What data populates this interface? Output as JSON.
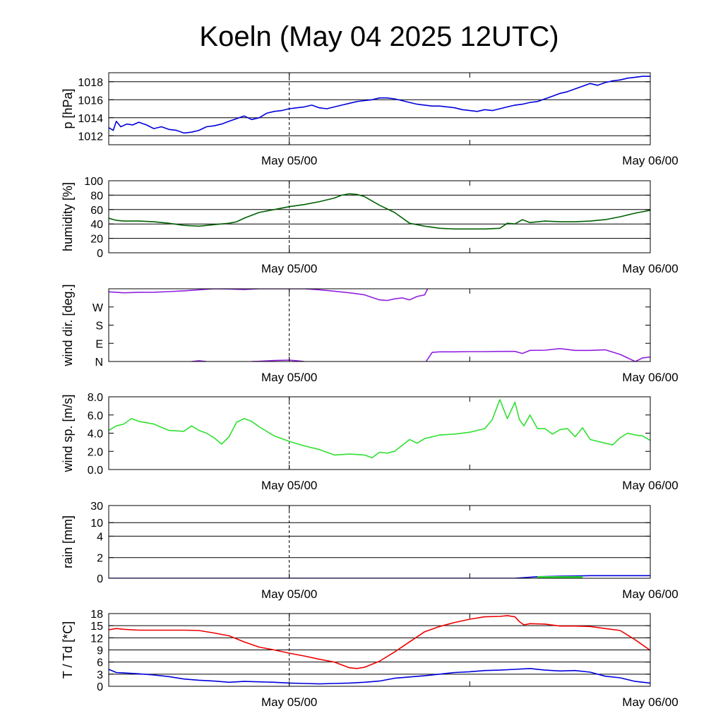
{
  "title": "Koeln (May 04 2025 12UTC)",
  "x_tick_labels": [
    "May 05/00",
    "May 06/00"
  ],
  "chart_data": [
    {
      "id": "pressure",
      "type": "line",
      "ylabel": "p [hPa]",
      "ylim": [
        1011,
        1019
      ],
      "yticks": [
        1012,
        1014,
        1016,
        1018
      ],
      "ytick_labels": [
        "1012",
        "1014",
        "1016",
        "1018"
      ],
      "grid_y": [
        1012,
        1014,
        1016,
        1018
      ],
      "xlim": [
        0,
        36
      ],
      "x_tick_positions": [
        12,
        24,
        36
      ],
      "series": [
        {
          "color": "#0000dd",
          "x": [
            0,
            0.3,
            0.5,
            0.8,
            1.2,
            1.6,
            2,
            2.5,
            3,
            3.5,
            4,
            4.5,
            5,
            5.5,
            6,
            6.5,
            7,
            7.5,
            8,
            8.5,
            9,
            9.5,
            10,
            10.5,
            11,
            11.5,
            12,
            12.5,
            13,
            13.5,
            14,
            14.5,
            15,
            15.5,
            16,
            16.5,
            17,
            17.5,
            18,
            18.5,
            19,
            19.5,
            20,
            20.5,
            21,
            21.5,
            22,
            22.5,
            23,
            23.5,
            24,
            24.5,
            25,
            25.5,
            26,
            26.5,
            27,
            27.5,
            28,
            28.5,
            29,
            29.5,
            30,
            30.5,
            31,
            31.5,
            32,
            32.5,
            33,
            33.5,
            34,
            34.5,
            35,
            35.5,
            36
          ],
          "y": [
            1012.9,
            1012.6,
            1013.6,
            1013.0,
            1013.3,
            1013.2,
            1013.5,
            1013.2,
            1012.8,
            1013.0,
            1012.7,
            1012.6,
            1012.3,
            1012.4,
            1012.6,
            1013.0,
            1013.1,
            1013.3,
            1013.6,
            1013.9,
            1014.2,
            1013.8,
            1014.0,
            1014.5,
            1014.7,
            1014.8,
            1015.0,
            1015.1,
            1015.2,
            1015.4,
            1015.1,
            1015.0,
            1015.2,
            1015.4,
            1015.6,
            1015.8,
            1015.9,
            1016.0,
            1016.2,
            1016.2,
            1016.1,
            1015.9,
            1015.7,
            1015.5,
            1015.4,
            1015.3,
            1015.3,
            1015.2,
            1015.1,
            1014.9,
            1014.8,
            1014.7,
            1014.9,
            1014.8,
            1015.0,
            1015.2,
            1015.4,
            1015.5,
            1015.7,
            1015.8,
            1016.1,
            1016.4,
            1016.7,
            1016.9,
            1017.2,
            1017.5,
            1017.8,
            1017.6,
            1017.9,
            1018.1,
            1018.2,
            1018.4,
            1018.5,
            1018.6,
            1018.6
          ]
        }
      ]
    },
    {
      "id": "humidity",
      "type": "line",
      "ylabel": "humidity [%]",
      "ylim": [
        0,
        100
      ],
      "yticks": [
        0,
        20,
        40,
        60,
        80,
        100
      ],
      "ytick_labels": [
        "0",
        "20",
        "40",
        "60",
        "80",
        "100"
      ],
      "grid_y": [
        20,
        40,
        60,
        80
      ],
      "xlim": [
        0,
        36
      ],
      "x_tick_positions": [
        12,
        24,
        36
      ],
      "series": [
        {
          "color": "#006000",
          "x": [
            0,
            0.5,
            1,
            2,
            3,
            4,
            5,
            6,
            7,
            7.5,
            8,
            8.5,
            9,
            10,
            11,
            12,
            13,
            14,
            15,
            15.5,
            16,
            16.5,
            17,
            17.5,
            18,
            19,
            20,
            21,
            22,
            23,
            24,
            25,
            26,
            26.5,
            27,
            27.5,
            28,
            29,
            30,
            31,
            32,
            33,
            34,
            35,
            36
          ],
          "y": [
            48,
            45,
            44,
            44,
            43,
            41,
            38,
            37,
            39,
            40,
            41,
            43,
            48,
            56,
            60,
            64,
            67,
            71,
            76,
            80,
            82,
            81,
            78,
            72,
            66,
            56,
            41,
            37,
            34,
            33,
            33,
            33,
            34,
            41,
            40,
            46,
            42,
            44,
            43,
            43,
            44,
            46,
            50,
            55,
            59
          ]
        }
      ]
    },
    {
      "id": "wind_direction",
      "type": "line",
      "ylabel": "wind dir. [deg.]",
      "ylim": [
        0,
        360
      ],
      "yticks": [
        0,
        90,
        180,
        270
      ],
      "ytick_labels": [
        "N",
        "E",
        "S",
        "W"
      ],
      "grid_y": [],
      "xlim": [
        0,
        36
      ],
      "x_tick_positions": [
        12,
        24,
        36
      ],
      "series": [
        {
          "color": "#9020e0",
          "segments": [
            {
              "x": [
                0,
                1,
                2,
                3,
                4,
                5,
                6,
                7,
                8,
                9,
                10,
                11,
                12,
                13,
                14,
                15,
                16,
                17,
                18,
                18.5,
                19,
                19.5,
                20,
                20.5,
                21,
                21.2
              ],
              "y": [
                345,
                340,
                342,
                343,
                346,
                350,
                355,
                360,
                359,
                356,
                360,
                360,
                360,
                360,
                355,
                348,
                340,
                330,
                305,
                302,
                310,
                315,
                305,
                322,
                330,
                360
              ]
            },
            {
              "x": [
                5.5,
                6,
                6.5
              ],
              "y": [
                0,
                4,
                0
              ]
            },
            {
              "x": [
                9.5,
                10,
                11,
                12,
                12.5,
                13
              ],
              "y": [
                0,
                1,
                5,
                7,
                4,
                0
              ]
            },
            {
              "x": [
                21.1,
                21.5,
                22,
                23,
                24,
                25,
                26,
                27,
                27.5,
                28,
                29,
                30,
                31,
                32,
                33,
                34,
                35,
                35.5,
                36
              ],
              "y": [
                0,
                45,
                48,
                48,
                49,
                49,
                50,
                50,
                40,
                55,
                56,
                64,
                55,
                55,
                58,
                35,
                0,
                18,
                22
              ]
            }
          ]
        }
      ]
    },
    {
      "id": "wind_speed",
      "type": "line",
      "ylabel": "wind sp. [m/s]",
      "ylim": [
        0,
        8
      ],
      "yticks": [
        0,
        2,
        4,
        6,
        8
      ],
      "ytick_labels": [
        "0.0",
        "2.0",
        "4.0",
        "6.0",
        "8.0"
      ],
      "grid_y": [],
      "xlim": [
        0,
        36
      ],
      "x_tick_positions": [
        12,
        24,
        36
      ],
      "series": [
        {
          "color": "#30e030",
          "x": [
            0,
            0.5,
            1,
            1.5,
            2,
            3,
            4,
            5,
            5.5,
            6,
            6.5,
            7,
            7.5,
            8,
            8.5,
            9,
            9.5,
            10,
            11,
            12,
            13,
            14,
            15,
            16,
            17,
            17.5,
            18,
            18.5,
            19,
            20,
            20.5,
            21,
            22,
            23,
            24,
            25,
            25.5,
            26,
            26.5,
            27,
            27.3,
            27.6,
            28,
            28.5,
            29,
            29.5,
            30,
            30.5,
            31,
            31.5,
            32,
            33,
            33.5,
            34,
            34.5,
            35,
            35.5,
            36
          ],
          "y": [
            4.3,
            4.8,
            5.0,
            5.6,
            5.3,
            5.0,
            4.3,
            4.2,
            4.8,
            4.3,
            4.0,
            3.5,
            2.8,
            3.6,
            5.2,
            5.6,
            5.3,
            4.7,
            3.7,
            3.1,
            2.6,
            2.2,
            1.6,
            1.7,
            1.6,
            1.3,
            1.9,
            1.8,
            2.0,
            3.3,
            2.9,
            3.4,
            3.8,
            3.9,
            4.1,
            4.5,
            5.5,
            7.7,
            5.6,
            7.4,
            5.5,
            4.8,
            6.0,
            4.5,
            4.5,
            3.9,
            4.4,
            4.5,
            3.6,
            4.6,
            3.3,
            2.9,
            2.7,
            3.5,
            4.0,
            3.8,
            3.7,
            3.2
          ]
        }
      ]
    },
    {
      "id": "rain",
      "type": "area",
      "ylabel": "rain [mm]",
      "ylim": [
        0,
        30
      ],
      "yticks": [
        0,
        2,
        4,
        10,
        30
      ],
      "ytick_labels": [
        "0",
        "2",
        "4",
        "10",
        "30"
      ],
      "grid_y": [
        2,
        4,
        10,
        30
      ],
      "scale": "nonlinear",
      "xlim": [
        0,
        36
      ],
      "x_tick_positions": [
        12,
        24,
        36
      ],
      "series": [
        {
          "color": "#0000dd",
          "kind": "line",
          "x": [
            0,
            27.0,
            28,
            28.5,
            30,
            31,
            32,
            34,
            36
          ],
          "y": [
            0,
            0,
            0.1,
            0.15,
            0.2,
            0.22,
            0.25,
            0.25,
            0.25
          ]
        },
        {
          "color": "#30e030",
          "kind": "bar",
          "x_start": 28.5,
          "x_end": 31.5,
          "value": 0.2
        }
      ]
    },
    {
      "id": "temperature",
      "type": "line",
      "ylabel": "T / Td [*C]",
      "ylim": [
        0,
        18
      ],
      "yticks": [
        0,
        3,
        6,
        9,
        12,
        15,
        18
      ],
      "ytick_labels": [
        "0",
        "3",
        "6",
        "9",
        "12",
        "15",
        "18"
      ],
      "grid_y": [
        3,
        6,
        9,
        12,
        15
      ],
      "xlim": [
        0,
        36
      ],
      "x_tick_positions": [
        12,
        24,
        36
      ],
      "series": [
        {
          "color": "#ee0000",
          "x": [
            0,
            0.5,
            1,
            2,
            3,
            4,
            5,
            6,
            7,
            8,
            9,
            10,
            11,
            12,
            13,
            14,
            15,
            16,
            16.5,
            17,
            18,
            19,
            20,
            21,
            22,
            23,
            24,
            25,
            26,
            26.5,
            27,
            27.3,
            27.6,
            28,
            29,
            30,
            31,
            32,
            33,
            34,
            35,
            36
          ],
          "y": [
            14.0,
            14.3,
            14.1,
            13.9,
            13.9,
            13.9,
            13.9,
            13.8,
            13.2,
            12.5,
            11.0,
            9.7,
            9.0,
            8.2,
            7.5,
            6.7,
            6.0,
            4.6,
            4.4,
            4.7,
            6.2,
            8.5,
            11.0,
            13.5,
            14.8,
            15.8,
            16.6,
            17.2,
            17.3,
            17.5,
            17.2,
            16.0,
            15.2,
            15.5,
            15.4,
            14.9,
            14.9,
            14.8,
            14.3,
            13.8,
            11.5,
            8.9
          ]
        },
        {
          "color": "#0000dd",
          "x": [
            0,
            0.5,
            1,
            2,
            3,
            4,
            5,
            6,
            7,
            8,
            9,
            10,
            11,
            12,
            13,
            14,
            15,
            16,
            17,
            18,
            19,
            20,
            21,
            22,
            23,
            24,
            25,
            26,
            27,
            28,
            29,
            30,
            31,
            32,
            33,
            34,
            35,
            36
          ],
          "y": [
            4.2,
            3.4,
            3.3,
            3.1,
            2.8,
            2.4,
            1.8,
            1.5,
            1.3,
            1.0,
            1.2,
            1.1,
            1.0,
            0.8,
            0.7,
            0.6,
            0.7,
            0.8,
            1.0,
            1.3,
            2.0,
            2.3,
            2.6,
            3.0,
            3.4,
            3.6,
            3.9,
            4.0,
            4.2,
            4.4,
            4.0,
            3.8,
            3.9,
            3.5,
            2.5,
            2.1,
            1.2,
            0.8
          ]
        }
      ]
    }
  ]
}
